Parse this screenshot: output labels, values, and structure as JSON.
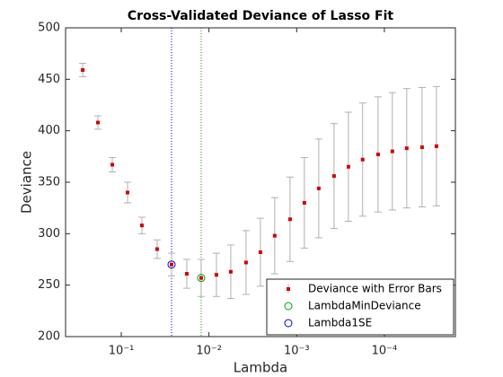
{
  "chart_data": {
    "type": "scatter",
    "title": "Cross-Validated Deviance of Lasso Fit",
    "x_label": "Lambda",
    "y_label": "Deviance",
    "xscale": "log",
    "xlim": [
      0.4315,
      1.55e-05
    ],
    "xticks": [
      {
        "value": 0.1,
        "label": "10⁻¹"
      },
      {
        "value": 0.01,
        "label": "10⁻²"
      },
      {
        "value": 0.001,
        "label": "10⁻³"
      },
      {
        "value": 0.0001,
        "label": "10⁻⁴"
      }
    ],
    "ylim": [
      200,
      500
    ],
    "yticks": [
      200,
      250,
      300,
      350,
      400,
      450,
      500
    ],
    "legend_position": "lower right",
    "series": [
      {
        "name": "Deviance with Error Bars",
        "color": "#d40000",
        "error_color": "#b0b0b0",
        "x": [
          0.275,
          0.1845,
          0.1265,
          0.0848,
          0.0582,
          0.039,
          0.0267,
          0.0179,
          0.01228,
          0.00822,
          0.00564,
          0.00378,
          0.00259,
          0.00178,
          0.00119,
          0.000817,
          0.00056,
          0.000375,
          0.000257,
          0.000177,
          0.000118,
          8.11e-05,
          5.56e-05,
          3.72e-05,
          2.55e-05
        ],
        "values": [
          459,
          408,
          367,
          340,
          308,
          285,
          270,
          261,
          257,
          260,
          263,
          272,
          282,
          298,
          314,
          330,
          344,
          356,
          365,
          372,
          377,
          380,
          383,
          384,
          385
        ],
        "errors": [
          6.5,
          6.5,
          7,
          10,
          8,
          9,
          11,
          14,
          18,
          21,
          26,
          31,
          33,
          37,
          41,
          44,
          48,
          51,
          53,
          55,
          56,
          57,
          58,
          58,
          58
        ]
      },
      {
        "name": "LambdaMinDeviance",
        "color": "#00a000",
        "x": [
          0.01228
        ],
        "values": [
          257
        ]
      },
      {
        "name": "Lambda1SE",
        "color": "#0000d0",
        "x": [
          0.0267
        ],
        "values": [
          270
        ]
      }
    ]
  }
}
